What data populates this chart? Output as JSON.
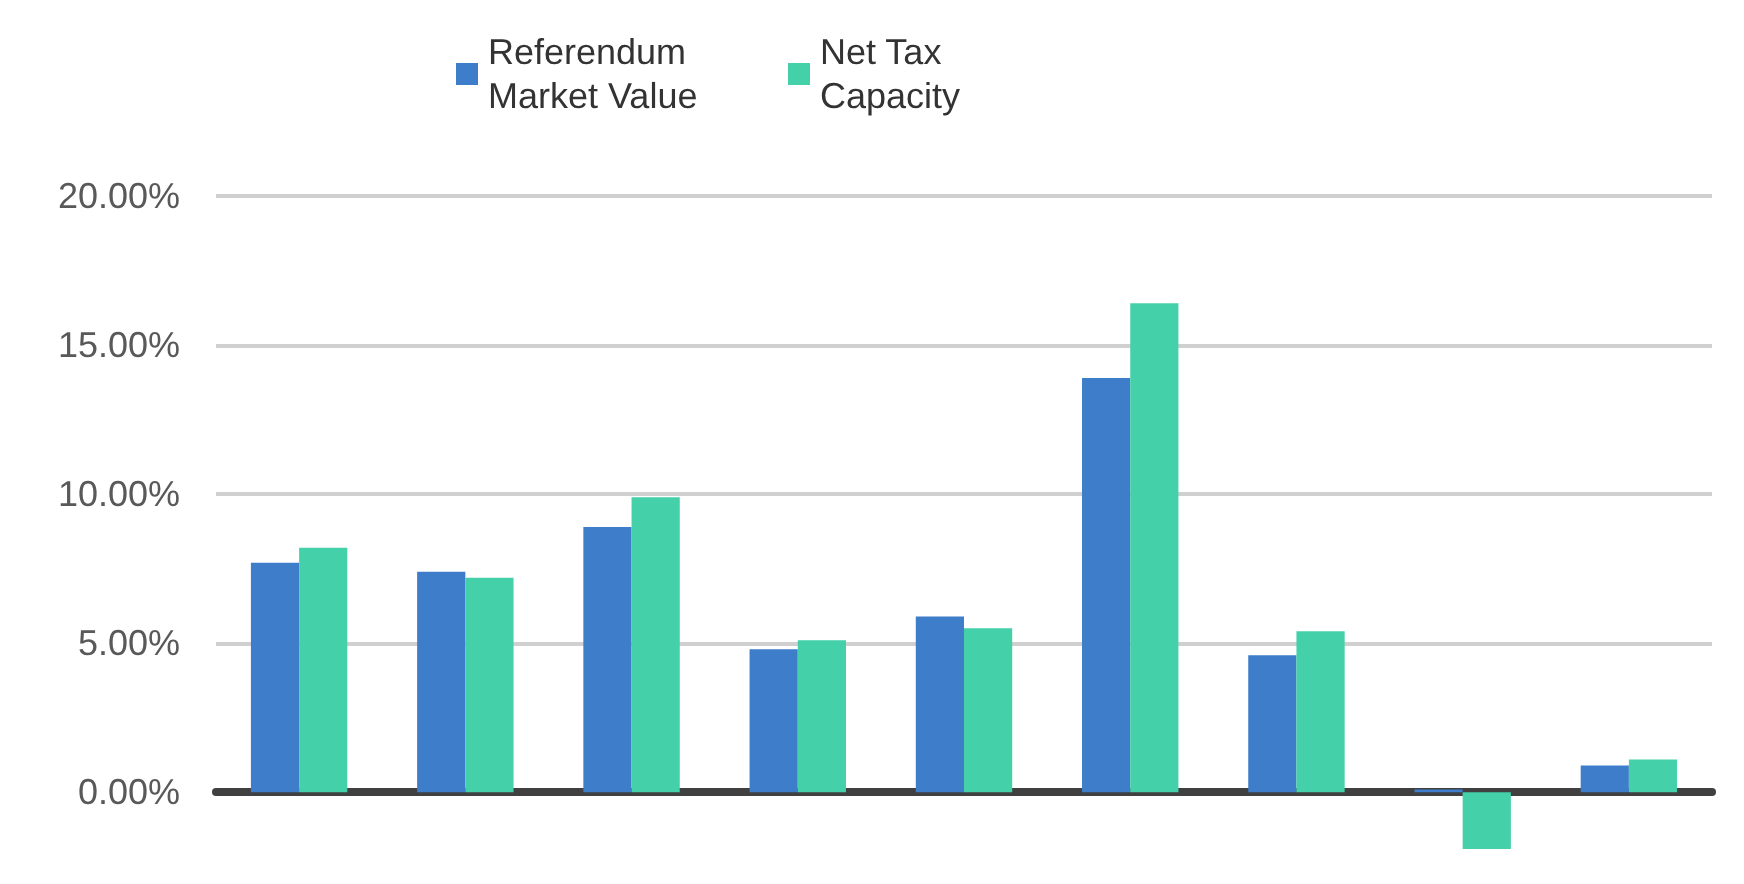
{
  "chart_data": {
    "type": "bar",
    "categories": [
      null,
      null,
      null,
      null,
      null,
      null,
      null,
      null,
      null
    ],
    "series": [
      {
        "name": "Referendum Market Value",
        "color": "#3d7dca",
        "values": [
          7.7,
          7.4,
          8.9,
          4.8,
          5.9,
          13.9,
          4.6,
          0.1,
          0.9
        ]
      },
      {
        "name": "Net Tax Capacity",
        "color": "#44d0a8",
        "values": [
          8.2,
          7.2,
          9.9,
          5.1,
          5.5,
          16.4,
          5.4,
          -1.9,
          1.1
        ]
      }
    ],
    "ylim": [
      -2,
      20
    ],
    "yticks": [
      {
        "value": 0,
        "label": "0.00%"
      },
      {
        "value": 5,
        "label": "5.00%"
      },
      {
        "value": 10,
        "label": "10.00%"
      },
      {
        "value": 15,
        "label": "15.00%"
      },
      {
        "value": 20,
        "label": "20.00%"
      }
    ],
    "grid": "y",
    "legend": "top"
  }
}
